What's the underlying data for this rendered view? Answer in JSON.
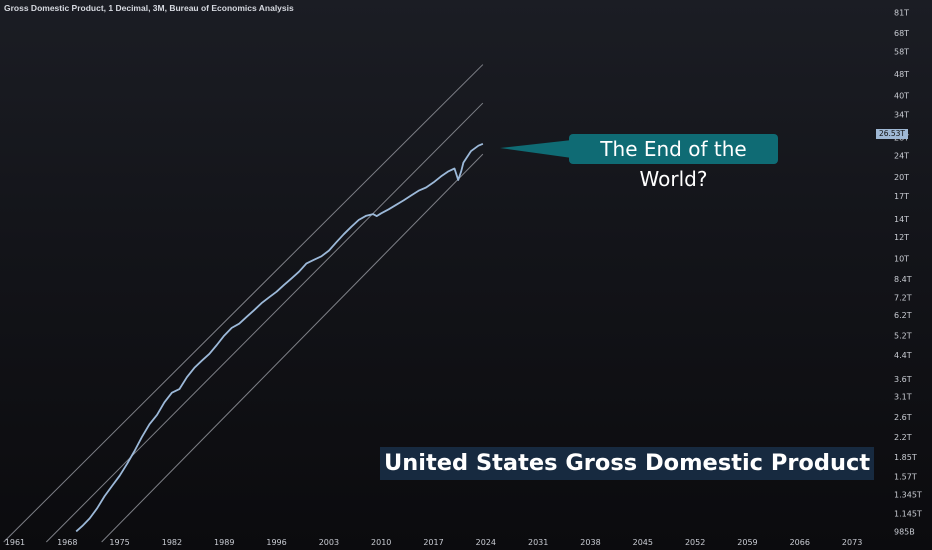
{
  "header": {
    "title": "Gross Domestic Product, 1 Decimal, 3M, Bureau of Economics Analysis"
  },
  "annotation": {
    "callout_text": "The End of the World?"
  },
  "banner": {
    "text": "United States Gross Domestic Product"
  },
  "last_value_label": "26.53T",
  "colors": {
    "series": "#9cb9d9",
    "channel": "#7d7f86",
    "callout": "#0f6b74",
    "banner": "#172a40",
    "price_box": "#9fb8d4"
  },
  "chart_data": {
    "type": "line",
    "title": "Gross Domestic Product, 1 Decimal, 3M, Bureau of Economics Analysis",
    "y_scale": "log",
    "ylim": [
      0.98,
      90
    ],
    "xlim": [
      1959,
      2077
    ],
    "x_ticks": [
      "1961",
      "1968",
      "1975",
      "1982",
      "1989",
      "1996",
      "2003",
      "2010",
      "2017",
      "2024",
      "2031",
      "2038",
      "2045",
      "2052",
      "2059",
      "2066",
      "2073"
    ],
    "y_ticks": [
      {
        "label": "985B",
        "value": 0.985
      },
      {
        "label": "1.145T",
        "value": 1.145
      },
      {
        "label": "1.345T",
        "value": 1.345
      },
      {
        "label": "1.57T",
        "value": 1.57
      },
      {
        "label": "1.85T",
        "value": 1.85
      },
      {
        "label": "2.2T",
        "value": 2.2
      },
      {
        "label": "2.6T",
        "value": 2.6
      },
      {
        "label": "3.1T",
        "value": 3.1
      },
      {
        "label": "3.6T",
        "value": 3.6
      },
      {
        "label": "4.4T",
        "value": 4.4
      },
      {
        "label": "5.2T",
        "value": 5.2
      },
      {
        "label": "6.2T",
        "value": 6.2
      },
      {
        "label": "7.2T",
        "value": 7.2
      },
      {
        "label": "8.4T",
        "value": 8.4
      },
      {
        "label": "10T",
        "value": 10
      },
      {
        "label": "12T",
        "value": 12
      },
      {
        "label": "14T",
        "value": 14
      },
      {
        "label": "17T",
        "value": 17
      },
      {
        "label": "20T",
        "value": 20
      },
      {
        "label": "24T",
        "value": 24
      },
      {
        "label": "28T",
        "value": 28
      },
      {
        "label": "34T",
        "value": 34
      },
      {
        "label": "40T",
        "value": 40
      },
      {
        "label": "48T",
        "value": 48
      },
      {
        "label": "58T",
        "value": 58
      },
      {
        "label": "68T",
        "value": 68
      },
      {
        "label": "81T",
        "value": 81
      }
    ],
    "series": [
      {
        "x": [
          1969.2,
          1970,
          1971,
          1972,
          1973,
          1974,
          1975,
          1976,
          1977,
          1978,
          1979,
          1980,
          1981,
          1982,
          1983,
          1984,
          1985,
          1986,
          1987,
          1988,
          1989,
          1990,
          1991,
          1992,
          1993,
          1994,
          1995,
          1996,
          1997,
          1998,
          1999,
          2000,
          2001,
          2002,
          2003,
          2004,
          2005,
          2006,
          2007,
          2008,
          2008.9,
          2009.4,
          2010,
          2011,
          2012,
          2013,
          2014,
          2015,
          2016,
          2017,
          2018,
          2019,
          2019.8,
          2020.3,
          2020.7,
          2021,
          2022,
          2023,
          2023.6
        ],
        "values": [
          0.985,
          1.03,
          1.1,
          1.2,
          1.33,
          1.45,
          1.58,
          1.75,
          1.95,
          2.2,
          2.45,
          2.65,
          2.95,
          3.2,
          3.3,
          3.65,
          3.95,
          4.2,
          4.45,
          4.8,
          5.2,
          5.55,
          5.75,
          6.1,
          6.45,
          6.85,
          7.2,
          7.55,
          8.0,
          8.45,
          8.95,
          9.6,
          9.9,
          10.2,
          10.7,
          11.5,
          12.3,
          13.1,
          13.9,
          14.4,
          14.6,
          14.35,
          14.7,
          15.2,
          15.8,
          16.4,
          17.1,
          17.8,
          18.3,
          19.1,
          20.1,
          21.0,
          21.5,
          19.5,
          21.0,
          22.6,
          24.9,
          26.1,
          26.53
        ]
      }
    ],
    "channel_lines": [
      {
        "x": [
          1959.5,
          2023.6
        ],
        "values": [
          0.9,
          52
        ]
      },
      {
        "x": [
          1965.2,
          2023.6
        ],
        "values": [
          0.9,
          37.5
        ]
      },
      {
        "x": [
          1972.6,
          2023.6
        ],
        "values": [
          0.9,
          24.3
        ]
      }
    ]
  }
}
